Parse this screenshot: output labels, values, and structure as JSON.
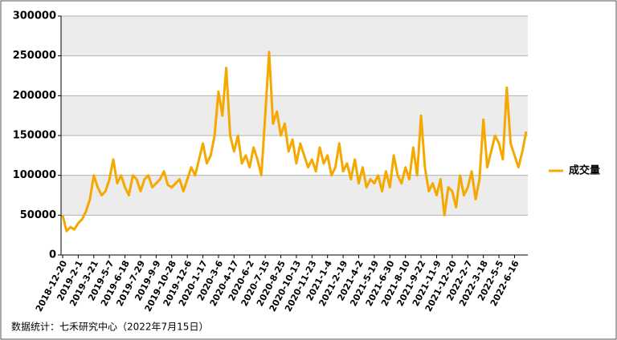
{
  "chart_data": {
    "type": "line",
    "source": "数据统计：七禾研究中心（2022年7月15日）",
    "categories": [
      "2018-12-20",
      null,
      null,
      null,
      "2019-2-1",
      null,
      null,
      null,
      "2019-3-21",
      null,
      null,
      null,
      "2019-5-7",
      null,
      null,
      null,
      "2019-6-18",
      null,
      null,
      null,
      "2019-7-29",
      null,
      null,
      null,
      "2019-9-9",
      null,
      null,
      null,
      "2019-10-28",
      null,
      null,
      null,
      "2019-12-6",
      null,
      null,
      null,
      "2020-1-17",
      null,
      null,
      null,
      "2020-3-6",
      null,
      null,
      null,
      "2020-4-17",
      null,
      null,
      null,
      "2020-6-2",
      null,
      null,
      null,
      "2020-7-15",
      null,
      null,
      null,
      "2020-8-25",
      null,
      null,
      null,
      "2020-10-13",
      null,
      null,
      null,
      "2020-11-23",
      null,
      null,
      null,
      "2021-1-4",
      null,
      null,
      null,
      "2021-2-19",
      null,
      null,
      null,
      "2021-4-2",
      null,
      null,
      null,
      "2021-5-19",
      null,
      null,
      null,
      "2021-6-30",
      null,
      null,
      null,
      "2021-8-10",
      null,
      null,
      null,
      "2021-9-22",
      null,
      null,
      null,
      "2021-11-9",
      null,
      null,
      null,
      "2021-12-20",
      null,
      null,
      null,
      "2022-2-7",
      null,
      null,
      null,
      "2022-3-18",
      null,
      null,
      null,
      "2022-5-5",
      null,
      null,
      null,
      "2022-6-16",
      null,
      null,
      null
    ],
    "series": [
      {
        "name": "成交量",
        "color": "#f5a800",
        "values": [
          50000,
          30000,
          35000,
          32000,
          40000,
          45000,
          55000,
          70000,
          100000,
          85000,
          75000,
          80000,
          95000,
          120000,
          90000,
          100000,
          85000,
          75000,
          100000,
          95000,
          80000,
          95000,
          100000,
          85000,
          90000,
          95000,
          105000,
          88000,
          85000,
          90000,
          95000,
          80000,
          95000,
          110000,
          100000,
          120000,
          140000,
          115000,
          125000,
          150000,
          205000,
          175000,
          235000,
          150000,
          130000,
          150000,
          115000,
          125000,
          110000,
          135000,
          120000,
          100000,
          175000,
          255000,
          165000,
          180000,
          150000,
          165000,
          130000,
          145000,
          115000,
          140000,
          125000,
          110000,
          120000,
          105000,
          135000,
          115000,
          125000,
          100000,
          110000,
          140000,
          105000,
          115000,
          95000,
          120000,
          90000,
          110000,
          85000,
          95000,
          90000,
          100000,
          80000,
          105000,
          85000,
          125000,
          100000,
          90000,
          110000,
          95000,
          135000,
          100000,
          175000,
          110000,
          80000,
          90000,
          75000,
          95000,
          50000,
          85000,
          80000,
          60000,
          100000,
          75000,
          85000,
          105000,
          70000,
          95000,
          170000,
          110000,
          130000,
          150000,
          140000,
          120000,
          210000,
          140000,
          125000,
          110000,
          130000,
          155000
        ]
      }
    ],
    "ylim": [
      0,
      300000
    ],
    "yticks": [
      0,
      50000,
      100000,
      150000,
      200000,
      250000,
      300000
    ],
    "grid": true,
    "legend": "right"
  }
}
